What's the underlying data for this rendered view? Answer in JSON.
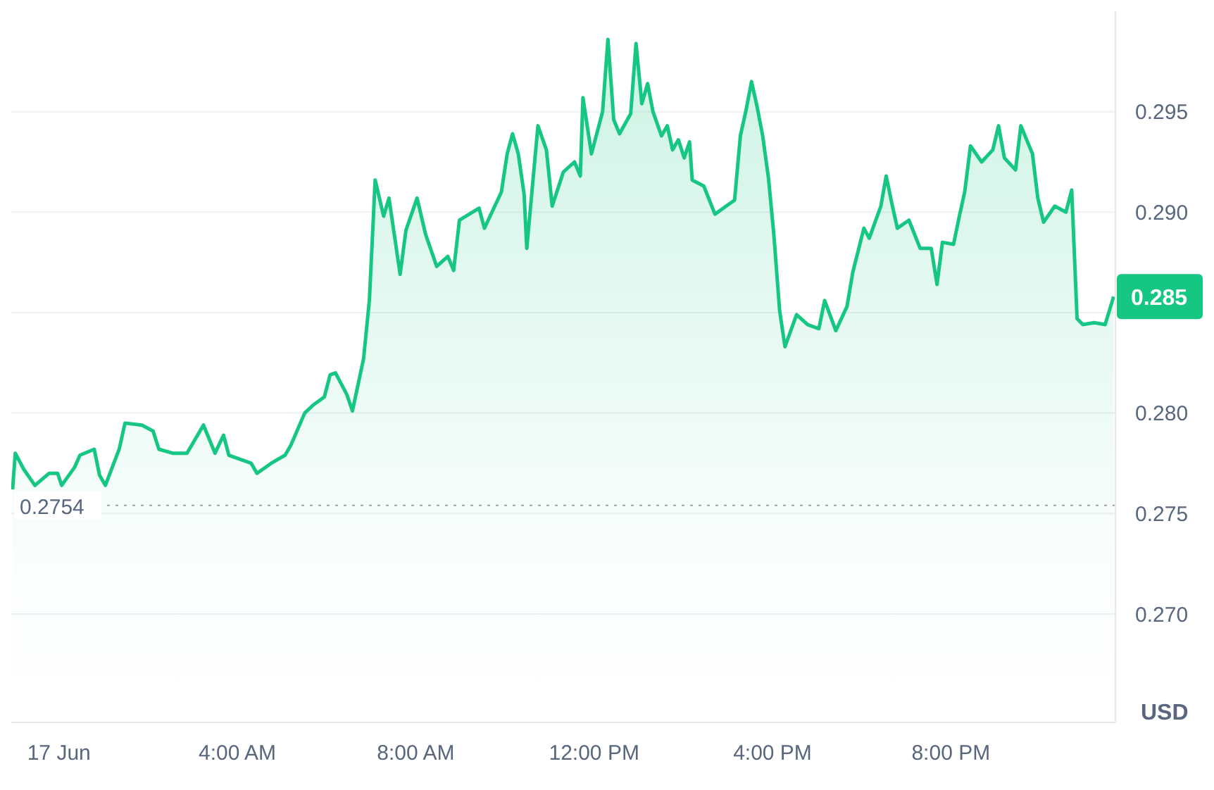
{
  "chart_data": {
    "type": "area",
    "ylabel": "USD",
    "x": [
      -1.04,
      -0.98,
      -0.79,
      -0.54,
      -0.22,
      -0.03,
      0.06,
      0.35,
      0.47,
      0.79,
      0.91,
      1.04,
      1.35,
      1.48,
      1.86,
      2.11,
      2.24,
      2.55,
      2.87,
      3.24,
      3.5,
      3.69,
      3.81,
      4.31,
      4.44,
      4.76,
      5.07,
      5.2,
      5.51,
      5.7,
      5.95,
      6.08,
      6.2,
      6.46,
      6.58,
      6.83,
      6.96,
      7.09,
      7.28,
      7.4,
      7.65,
      7.78,
      8.03,
      8.22,
      8.47,
      8.72,
      8.85,
      8.98,
      9.42,
      9.54,
      9.92,
      10.05,
      10.17,
      10.3,
      10.43,
      10.49,
      10.74,
      10.93,
      11.06,
      11.31,
      11.56,
      11.69,
      11.75,
      11.94,
      12.19,
      12.31,
      12.44,
      12.57,
      12.82,
      12.94,
      13.07,
      13.2,
      13.32,
      13.51,
      13.64,
      13.76,
      13.89,
      14.02,
      14.14,
      14.2,
      14.46,
      14.71,
      14.96,
      15.15,
      15.28,
      15.4,
      15.53,
      15.65,
      15.78,
      15.91,
      16.03,
      16.16,
      16.28,
      16.54,
      16.79,
      17.04,
      17.17,
      17.42,
      17.67,
      17.8,
      18.05,
      18.17,
      18.43,
      18.55,
      18.68,
      18.8,
      19.06,
      19.31,
      19.56,
      19.69,
      19.81,
      20.06,
      20.19,
      20.31,
      20.44,
      20.69,
      20.94,
      21.07,
      21.2,
      21.45,
      21.57,
      21.83,
      21.95,
      22.08,
      22.33,
      22.58,
      22.71,
      22.83,
      22.96,
      23.21,
      23.46,
      23.65
    ],
    "series": [
      {
        "color": "#16c784",
        "values": [
          0.2762,
          0.278,
          0.2772,
          0.2764,
          0.277,
          0.277,
          0.2764,
          0.2773,
          0.2779,
          0.2782,
          0.2769,
          0.2764,
          0.2782,
          0.2795,
          0.2794,
          0.2791,
          0.2782,
          0.278,
          0.278,
          0.2794,
          0.278,
          0.2789,
          0.2779,
          0.2775,
          0.277,
          0.2775,
          0.2779,
          0.2784,
          0.28,
          0.2804,
          0.2808,
          0.2819,
          0.282,
          0.2809,
          0.2801,
          0.2827,
          0.2856,
          0.2916,
          0.2898,
          0.2907,
          0.2869,
          0.2891,
          0.2907,
          0.2889,
          0.2873,
          0.2878,
          0.2871,
          0.2896,
          0.2902,
          0.2892,
          0.291,
          0.2929,
          0.2939,
          0.2929,
          0.2909,
          0.2882,
          0.2943,
          0.2931,
          0.2903,
          0.292,
          0.2925,
          0.2918,
          0.2957,
          0.2929,
          0.295,
          0.2986,
          0.2946,
          0.2939,
          0.2949,
          0.2984,
          0.2954,
          0.2964,
          0.295,
          0.2938,
          0.2943,
          0.2931,
          0.2936,
          0.2927,
          0.2935,
          0.2916,
          0.2913,
          0.2899,
          0.2903,
          0.2906,
          0.2938,
          0.295,
          0.2965,
          0.2953,
          0.2938,
          0.2917,
          0.2889,
          0.2851,
          0.2833,
          0.2849,
          0.2844,
          0.2842,
          0.2856,
          0.2841,
          0.2853,
          0.287,
          0.2892,
          0.2887,
          0.2903,
          0.2918,
          0.2904,
          0.2892,
          0.2896,
          0.2882,
          0.2882,
          0.2864,
          0.2885,
          0.2884,
          0.2898,
          0.291,
          0.2933,
          0.2925,
          0.2931,
          0.2943,
          0.2927,
          0.2921,
          0.2943,
          0.2929,
          0.2907,
          0.2895,
          0.2903,
          0.29,
          0.2911,
          0.2847,
          0.2844,
          0.2845,
          0.2844,
          0.2858
        ]
      }
    ],
    "xlim": [
      -1.07,
      23.69
    ],
    "xticks": [
      {
        "value": 0,
        "label": "17 Jun"
      },
      {
        "value": 4,
        "label": "4:00 AM"
      },
      {
        "value": 8,
        "label": "8:00 AM"
      },
      {
        "value": 12,
        "label": "12:00 PM"
      },
      {
        "value": 16,
        "label": "4:00 PM"
      },
      {
        "value": 20,
        "label": "8:00 PM"
      }
    ],
    "ylim": [
      0.2646,
      0.3
    ],
    "yticks": [
      {
        "value": 0.27,
        "label": "0.270"
      },
      {
        "value": 0.275,
        "label": "0.275"
      },
      {
        "value": 0.28,
        "label": "0.280"
      },
      {
        "value": 0.285,
        "label": null
      },
      {
        "value": 0.29,
        "label": "0.290"
      },
      {
        "value": 0.295,
        "label": "0.295"
      }
    ],
    "grid": "y",
    "marker": "none",
    "line_style": "solid",
    "ref_lines": [
      {
        "axis": "y",
        "value": 0.2754,
        "label": "0.2754",
        "line_style": "dotted",
        "color": "#a0a4ab"
      }
    ],
    "annotations": [
      "0.285"
    ]
  }
}
